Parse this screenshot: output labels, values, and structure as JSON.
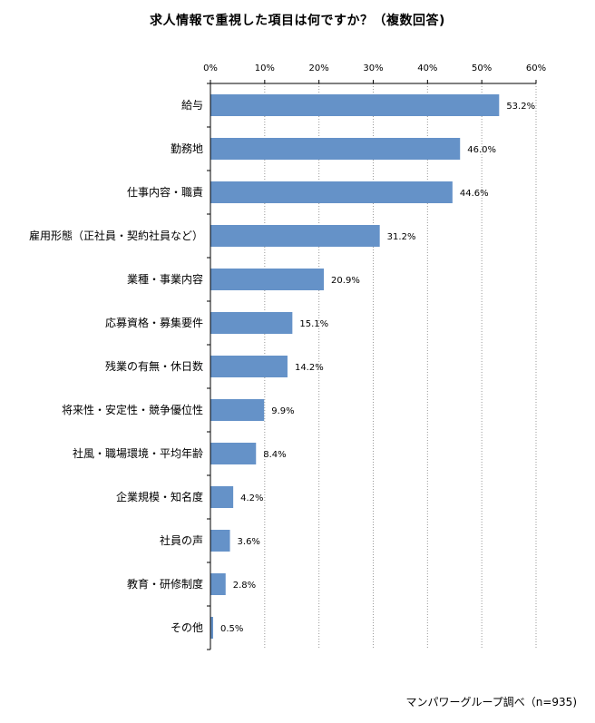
{
  "chart_data": {
    "type": "bar",
    "orientation": "horizontal",
    "title": "求人情報で重視した項目は何ですか？（複数回答)",
    "categories": [
      "給与",
      "勤務地",
      "仕事内容・職責",
      "雇用形態（正社員・契約社員など）",
      "業種・事業内容",
      "応募資格・募集要件",
      "残業の有無・休日数",
      "将来性・安定性・競争優位性",
      "社風・職場環境・平均年齢",
      "企業規模・知名度",
      "社員の声",
      "教育・研修制度",
      "その他"
    ],
    "values": [
      53.2,
      46.0,
      44.6,
      31.2,
      20.9,
      15.1,
      14.2,
      9.9,
      8.4,
      4.2,
      3.6,
      2.8,
      0.5
    ],
    "value_labels": [
      "53.2%",
      "46.0%",
      "44.6%",
      "31.2%",
      "20.9%",
      "15.1%",
      "14.2%",
      "9.9%",
      "8.4%",
      "4.2%",
      "3.6%",
      "2.8%",
      "0.5%"
    ],
    "xlim": [
      0,
      60
    ],
    "ticks": [
      0,
      10,
      20,
      30,
      40,
      50,
      60
    ],
    "tick_labels": [
      "0%",
      "10%",
      "20%",
      "30%",
      "40%",
      "50%",
      "60%"
    ],
    "axis_position": "top",
    "grid": true,
    "bar_color": "#6592c8",
    "grid_color": "#999999",
    "xlabel": "",
    "ylabel": ""
  },
  "source_note": "マンパワーグループ調べ（n=935)"
}
